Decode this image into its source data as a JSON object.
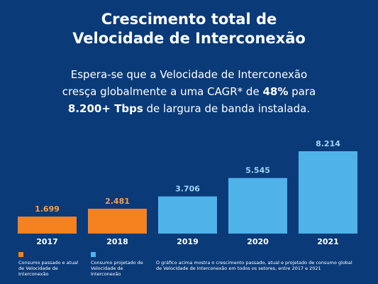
{
  "title": {
    "line1": "Crescimento total de",
    "line2": "Velocidade de Interconexão"
  },
  "subtitle": {
    "part1": "Espera-se que a Velocidade de Interconexão",
    "part2": "cresça globalmente a uma CAGR* de ",
    "bold1": "48%",
    "part3": " para",
    "bold2": "8.200+ Tbps",
    "part4": " de largura de banda instalada."
  },
  "colors": {
    "background": "#0a3a78",
    "past": "#f5821f",
    "projected": "#4fb3ea",
    "past_label": "#f5a04a",
    "projected_label": "#9fd6f5"
  },
  "chart_data": {
    "type": "bar",
    "title": "Crescimento total de Velocidade de Interconexão",
    "categories": [
      "2017",
      "2018",
      "2019",
      "2020",
      "2021"
    ],
    "values": [
      1699,
      2481,
      3706,
      5545,
      8214
    ],
    "value_labels": [
      "1.699",
      "2.481",
      "3.706",
      "5.545",
      "8.214"
    ],
    "series_kind": [
      "past",
      "past",
      "projected",
      "projected",
      "projected"
    ],
    "ylim": [
      0,
      8214
    ],
    "grid": false,
    "legend_position": "bottom"
  },
  "legend": {
    "past": "Consumo passado e atual de Velocidade de Interconexão",
    "projected": "Consumo projetado de Velocidade de Interconexão",
    "note": "O gráfico acima mostra o crescimento passado, atual e projetado de consumo global de Velocidade de Interconexão em todos os setores, entre 2017 e 2021"
  }
}
